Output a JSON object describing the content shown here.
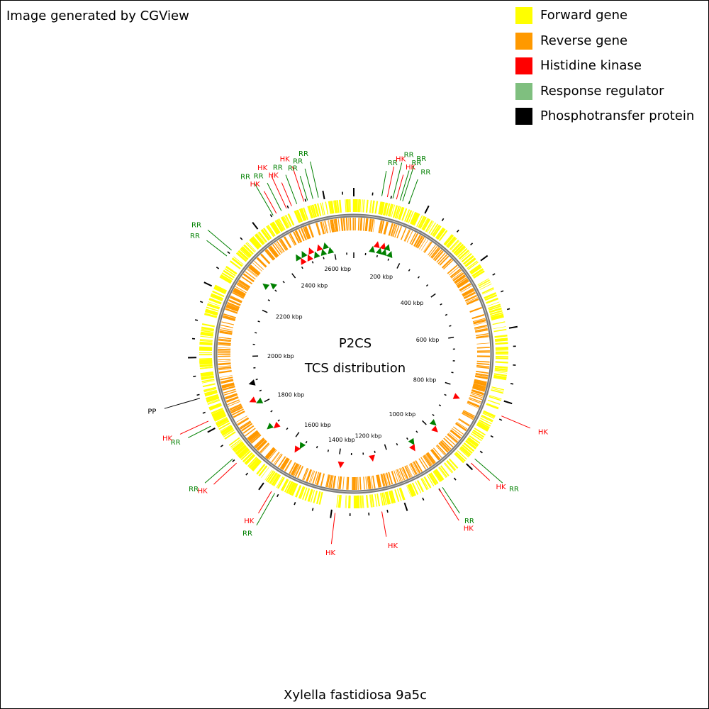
{
  "credit": "Image generated by CGView",
  "legend": [
    {
      "label": "Forward gene",
      "color": "#ffff00"
    },
    {
      "label": "Reverse gene",
      "color": "#ff9900"
    },
    {
      "label": "Histidine kinase",
      "color": "#ff0000"
    },
    {
      "label": "Response regulator",
      "color": "#7fbf7f"
    },
    {
      "label": "Phosphotransfer protein",
      "color": "#000000"
    }
  ],
  "map": {
    "title": "P2CS",
    "subtitle": "TCS distribution",
    "organism": "Xylella fastidiosa 9a5c",
    "genome_length_kbp": 2680,
    "kbp_labels": [
      "200 kbp",
      "400 kbp",
      "600 kbp",
      "800 kbp",
      "1000 kbp",
      "1200 kbp",
      "1400 kbp",
      "1600 kbp",
      "1800 kbp",
      "2000 kbp",
      "2200 kbp",
      "2400 kbp",
      "2600 kbp"
    ],
    "feature_labels": [
      {
        "text": "RR",
        "type": "RR",
        "pos_kbp": 75
      },
      {
        "text": "HK",
        "type": "HK",
        "pos_kbp": 90
      },
      {
        "text": "RR",
        "type": "RR",
        "pos_kbp": 105
      },
      {
        "text": "HK",
        "type": "HK",
        "pos_kbp": 115
      },
      {
        "text": "RR",
        "type": "RR",
        "pos_kbp": 125
      },
      {
        "text": "RR",
        "type": "RR",
        "pos_kbp": 132
      },
      {
        "text": "RR",
        "type": "RR",
        "pos_kbp": 150
      },
      {
        "text": "HK",
        "type": "HK",
        "pos_kbp": 840
      },
      {
        "text": "RR",
        "type": "RR",
        "pos_kbp": 975
      },
      {
        "text": "HK",
        "type": "HK",
        "pos_kbp": 990
      },
      {
        "text": "RR",
        "type": "RR",
        "pos_kbp": 1090
      },
      {
        "text": "HK",
        "type": "HK",
        "pos_kbp": 1100
      },
      {
        "text": "HK",
        "type": "HK",
        "pos_kbp": 1265
      },
      {
        "text": "HK",
        "type": "HK",
        "pos_kbp": 1390
      },
      {
        "text": "RR",
        "type": "RR",
        "pos_kbp": 1560
      },
      {
        "text": "HK",
        "type": "HK",
        "pos_kbp": 1570
      },
      {
        "text": "HK",
        "type": "HK",
        "pos_kbp": 1690
      },
      {
        "text": "RR",
        "type": "RR",
        "pos_kbp": 1705
      },
      {
        "text": "RR",
        "type": "RR",
        "pos_kbp": 1810
      },
      {
        "text": "HK",
        "type": "HK",
        "pos_kbp": 1825
      },
      {
        "text": "PP",
        "type": "PP",
        "pos_kbp": 1890
      },
      {
        "text": "RR",
        "type": "RR",
        "pos_kbp": 2290
      },
      {
        "text": "RR",
        "type": "RR",
        "pos_kbp": 2310
      },
      {
        "text": "RR",
        "type": "RR",
        "pos_kbp": 2455
      },
      {
        "text": "HK",
        "type": "HK",
        "pos_kbp": 2465
      },
      {
        "text": "RR",
        "type": "RR",
        "pos_kbp": 2480
      },
      {
        "text": "HK",
        "type": "HK",
        "pos_kbp": 2495
      },
      {
        "text": "HK",
        "type": "HK",
        "pos_kbp": 2510
      },
      {
        "text": "RR",
        "type": "RR",
        "pos_kbp": 2525
      },
      {
        "text": "HK",
        "type": "HK",
        "pos_kbp": 2545
      },
      {
        "text": "RR",
        "type": "RR",
        "pos_kbp": 2555
      },
      {
        "text": "RR",
        "type": "RR",
        "pos_kbp": 2570
      },
      {
        "text": "RR",
        "type": "RR",
        "pos_kbp": 2585
      }
    ],
    "label_colors": {
      "HK": "#ff0000",
      "RR": "#008000",
      "PP": "#000000"
    },
    "marker_colors": {
      "HK": "#ff0000",
      "RR": "#008000",
      "PP": "#000000"
    }
  }
}
